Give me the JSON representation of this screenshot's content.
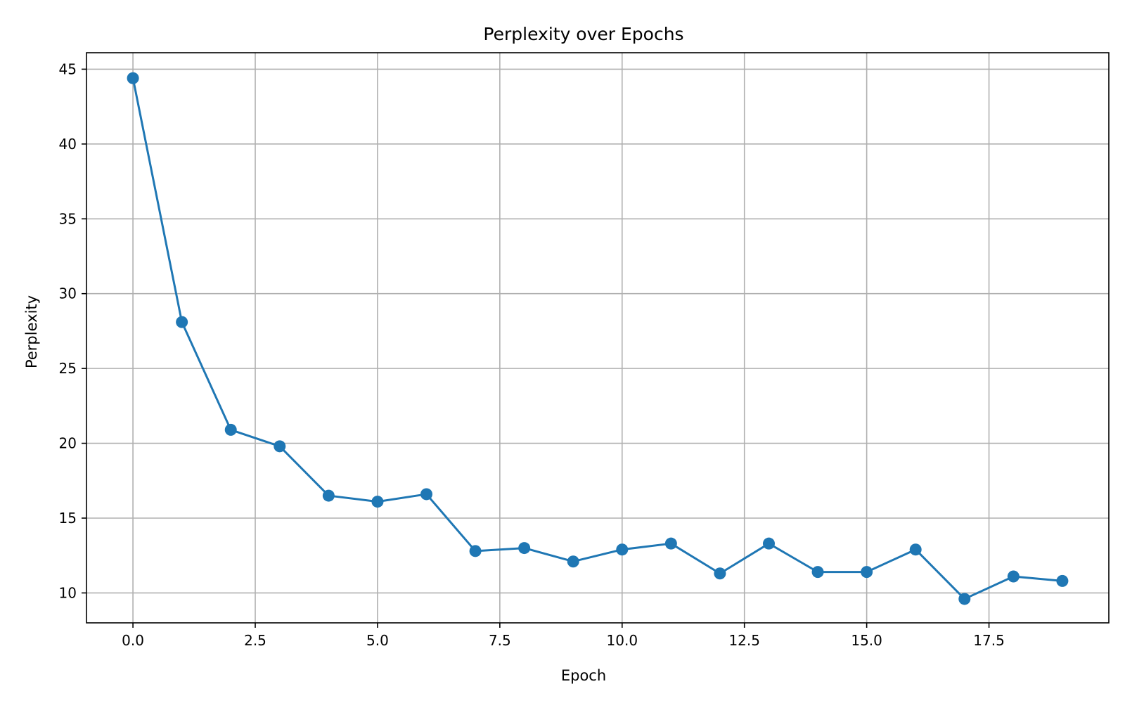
{
  "chart_data": {
    "type": "line",
    "title": "Perplexity over Epochs",
    "xlabel": "Epoch",
    "ylabel": "Perplexity",
    "xlim": [
      -0.95,
      19.95
    ],
    "ylim": [
      8.0,
      46.1
    ],
    "xticks": [
      0.0,
      2.5,
      5.0,
      7.5,
      10.0,
      12.5,
      15.0,
      17.5
    ],
    "xtick_labels": [
      "0.0",
      "2.5",
      "5.0",
      "7.5",
      "10.0",
      "12.5",
      "15.0",
      "17.5"
    ],
    "yticks": [
      10,
      15,
      20,
      25,
      30,
      35,
      40,
      45
    ],
    "ytick_labels": [
      "10",
      "15",
      "20",
      "25",
      "30",
      "35",
      "40",
      "45"
    ],
    "grid": true,
    "legend": "none",
    "color": "#1f77b4",
    "marker": "circle",
    "series": [
      {
        "x": [
          0,
          1,
          2,
          3,
          4,
          5,
          6,
          7,
          8,
          9,
          10,
          11,
          12,
          13,
          14,
          15,
          16,
          17,
          18,
          19
        ],
        "values": [
          44.4,
          28.1,
          20.9,
          19.8,
          16.5,
          16.1,
          16.6,
          12.8,
          13.0,
          12.1,
          12.9,
          13.3,
          11.3,
          13.3,
          11.4,
          11.4,
          12.9,
          9.6,
          11.1,
          10.8
        ]
      }
    ]
  }
}
